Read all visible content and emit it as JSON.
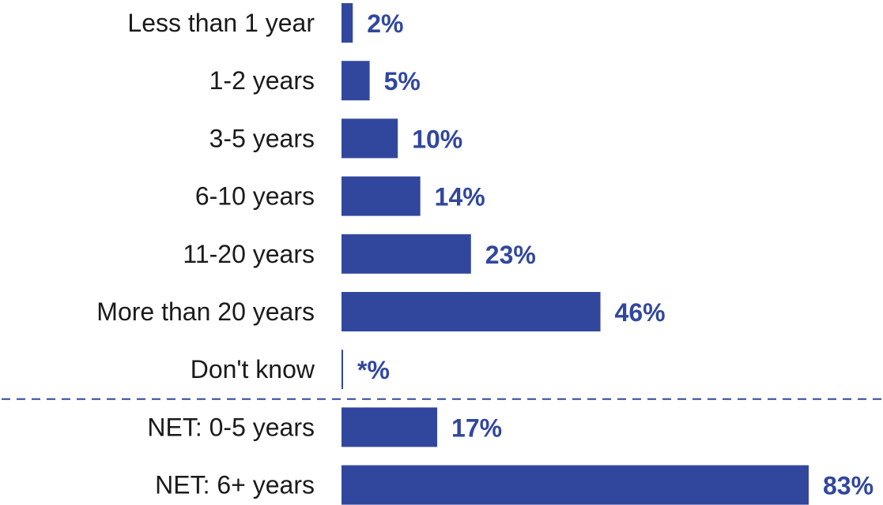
{
  "colors": {
    "bar": "#31479e",
    "value_text": "#31479e",
    "category_text": "#1a1a1a",
    "separator": "#31479e"
  },
  "chart_data": {
    "type": "bar",
    "orientation": "horizontal",
    "title": "",
    "xlabel": "",
    "ylabel": "",
    "xlim": [
      0,
      83
    ],
    "grid": false,
    "legend": "none",
    "categories": [
      "Less than 1 year",
      "1-2 years",
      "3-5 years",
      "6-10 years",
      "11-20 years",
      "More than 20 years",
      "Don't know",
      "NET: 0-5 years",
      "NET: 6+ years"
    ],
    "values": [
      2,
      5,
      10,
      14,
      23,
      46,
      0.2,
      17,
      83
    ],
    "value_labels": [
      "2%",
      "5%",
      "10%",
      "14%",
      "23%",
      "46%",
      "*%",
      "17%",
      "83%"
    ],
    "separator_after_index": 6
  }
}
